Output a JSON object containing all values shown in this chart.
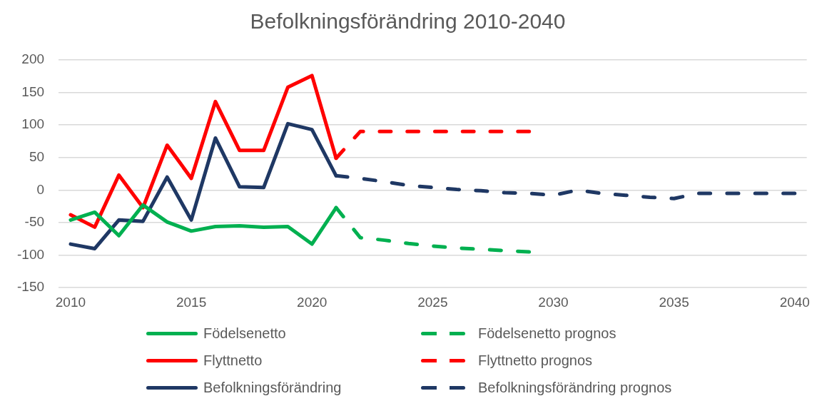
{
  "chart_data": {
    "type": "line",
    "title": "Befolkningsförändring 2010-2040",
    "xlim": [
      2009.5,
      2040.5
    ],
    "xticks": [
      2010,
      2015,
      2020,
      2025,
      2030,
      2035,
      2040
    ],
    "ylim": [
      -150,
      200
    ],
    "yticks": [
      -150,
      -100,
      -50,
      0,
      50,
      100,
      150,
      200
    ],
    "grid": "y",
    "legend": "bottom",
    "marker": "none",
    "series": [
      {
        "name": "Födelsenetto",
        "color": "#00b050",
        "line_style": "solid",
        "x": [
          2010,
          2011,
          2012,
          2013,
          2014,
          2015,
          2016,
          2017,
          2018,
          2019,
          2020,
          2021
        ],
        "values": [
          -46,
          -34,
          -70,
          -23,
          -49,
          -63,
          -56,
          -55,
          -57,
          -56,
          -83,
          -27
        ]
      },
      {
        "name": "Födelsenetto prognos",
        "color": "#00b050",
        "line_style": "dashed",
        "x": [
          2021,
          2022,
          2023,
          2024,
          2025,
          2026,
          2027,
          2028,
          2029
        ],
        "values": [
          -27,
          -73,
          -77,
          -82,
          -86,
          -89,
          -91,
          -93,
          -95
        ]
      },
      {
        "name": "Flyttnetto",
        "color": "#ff0000",
        "line_style": "solid",
        "x": [
          2010,
          2011,
          2012,
          2013,
          2014,
          2015,
          2016,
          2017,
          2018,
          2019,
          2020,
          2021
        ],
        "values": [
          -38,
          -57,
          23,
          -27,
          69,
          18,
          136,
          61,
          61,
          158,
          176,
          49
        ]
      },
      {
        "name": "Flyttnetto prognos",
        "color": "#ff0000",
        "line_style": "dashed",
        "x": [
          2021,
          2022,
          2023,
          2024,
          2025,
          2026,
          2027,
          2028,
          2029
        ],
        "values": [
          49,
          90,
          90,
          90,
          90,
          90,
          90,
          90,
          90
        ]
      },
      {
        "name": "Befolkningsförändring",
        "color": "#1f3864",
        "line_style": "solid",
        "x": [
          2010,
          2011,
          2012,
          2013,
          2014,
          2015,
          2016,
          2017,
          2018,
          2019,
          2020,
          2021
        ],
        "values": [
          -83,
          -90,
          -46,
          -48,
          20,
          -46,
          80,
          5,
          4,
          102,
          93,
          22
        ]
      },
      {
        "name": "Befolkningsförändring prognos",
        "color": "#1f3864",
        "line_style": "dashed",
        "x": [
          2021,
          2022,
          2023,
          2024,
          2025,
          2026,
          2027,
          2028,
          2029,
          2030,
          2031,
          2032,
          2033,
          2034,
          2035,
          2036,
          2037,
          2038,
          2039,
          2040
        ],
        "values": [
          22,
          18,
          13,
          7,
          4,
          1,
          -1,
          -4,
          -5,
          -8,
          0,
          -5,
          -8,
          -11,
          -13,
          -5,
          -5,
          -5,
          -5,
          -5
        ]
      }
    ]
  }
}
